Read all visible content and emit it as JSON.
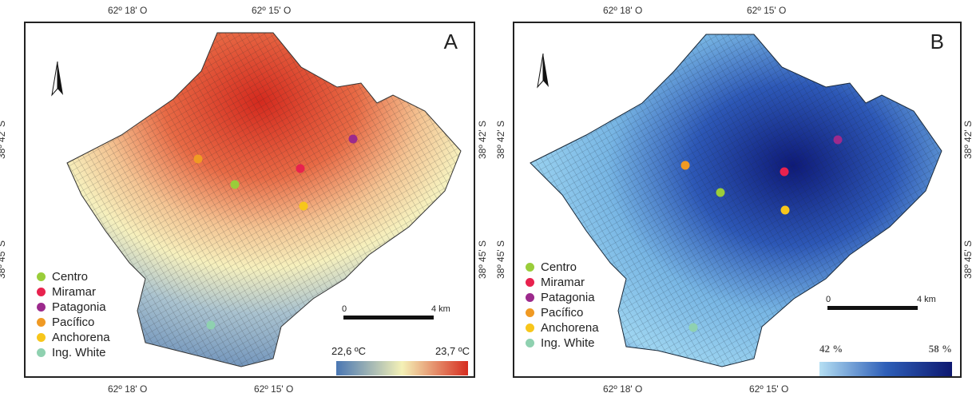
{
  "coords": {
    "lon_left": "62º 18' O",
    "lon_right": "62º 15' O",
    "lat_top": "38º 42' S",
    "lat_bottom": "38º 45' S"
  },
  "panels": [
    {
      "letter": "A",
      "scale": {
        "zero": "0",
        "end": "4 km"
      },
      "colorbar": {
        "min_label": "22,6 ºC",
        "max_label": "23,7 ºC",
        "colors": [
          "#4a77b3",
          "#f4f1b6",
          "#d62d20"
        ]
      }
    },
    {
      "letter": "B",
      "scale": {
        "zero": "0",
        "end": "4 km"
      },
      "colorbar": {
        "min_label": "42 %",
        "max_label": "58 %",
        "colors": [
          "#b5dff3",
          "#2e5fb8",
          "#0d1870"
        ]
      }
    }
  ],
  "legend": [
    {
      "name": "Centro",
      "color": "#9acd3a"
    },
    {
      "name": "Miramar",
      "color": "#e8224e"
    },
    {
      "name": "Patagonia",
      "color": "#9c2a8c"
    },
    {
      "name": "Pacífico",
      "color": "#f09a24"
    },
    {
      "name": "Anchorena",
      "color": "#f7c61b"
    },
    {
      "name": "Ing. White",
      "color": "#8fd1b0"
    }
  ]
}
